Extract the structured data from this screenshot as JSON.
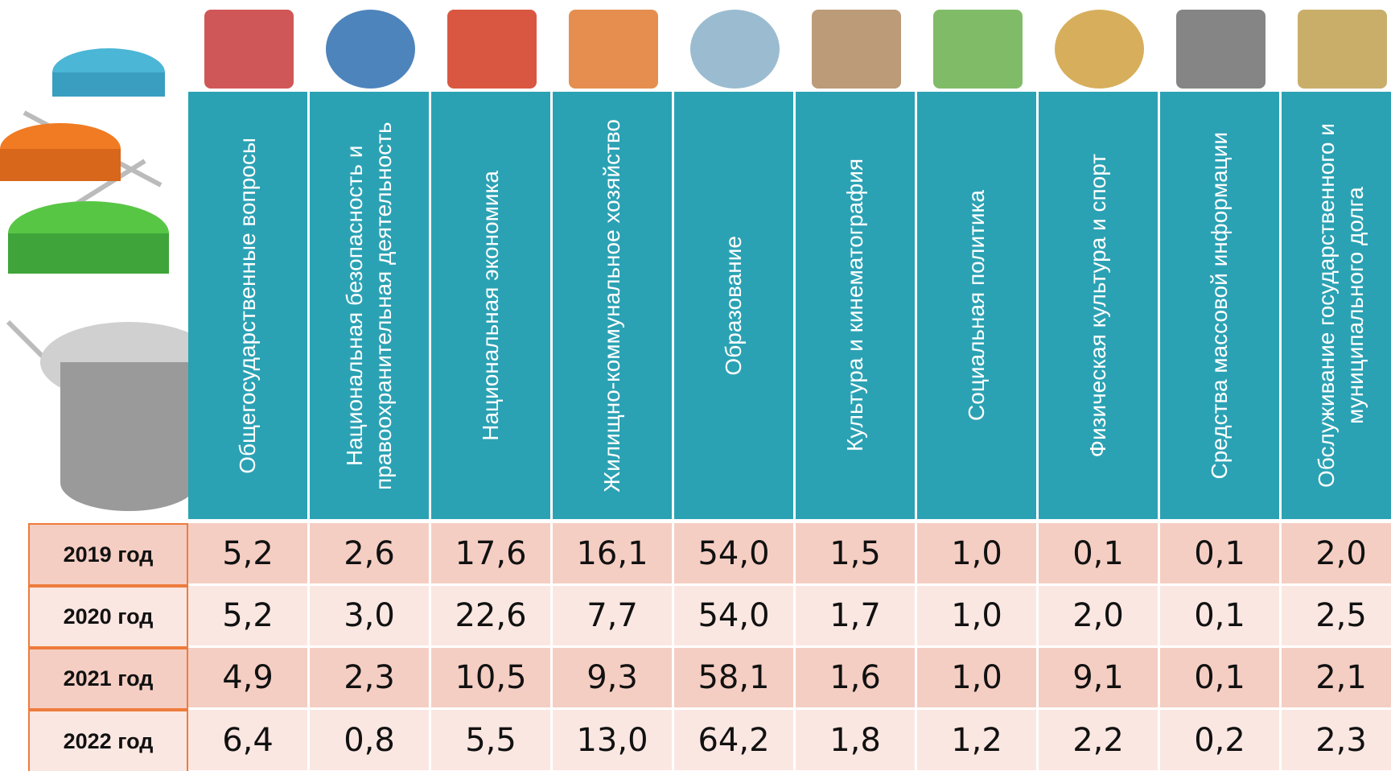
{
  "headers": [
    "Общегосударственные вопросы",
    "Национальная безопасность и правоохранительная деятельность",
    "Национальная экономика",
    "Жилищно-коммунальное хозяйство",
    "Образование",
    "Культура и кинематография",
    "Социальная политика",
    "Физическая культура и спорт",
    "Средства массовой информации",
    "Обслуживание государственного и муниципального долга"
  ],
  "rows": [
    {
      "year": "2019 год",
      "values": [
        "5,2",
        "2,6",
        "17,6",
        "16,1",
        "54,0",
        "1,5",
        "1,0",
        "0,1",
        "0,1",
        "2,0"
      ]
    },
    {
      "year": "2020 год",
      "values": [
        "5,2",
        "3,0",
        "22,6",
        "7,7",
        "54,0",
        "1,7",
        "1,0",
        "2,0",
        "0,1",
        "2,5"
      ]
    },
    {
      "year": "2021 год",
      "values": [
        "4,9",
        "2,3",
        "10,5",
        "9,3",
        "58,1",
        "1,6",
        "1,0",
        "9,1",
        "0,1",
        "2,1"
      ]
    },
    {
      "year": "2022 год",
      "values": [
        "6,4",
        "0,8",
        "5,5",
        "13,0",
        "64,2",
        "1,8",
        "1,2",
        "2,2",
        "0,2",
        "2,3"
      ]
    }
  ]
}
